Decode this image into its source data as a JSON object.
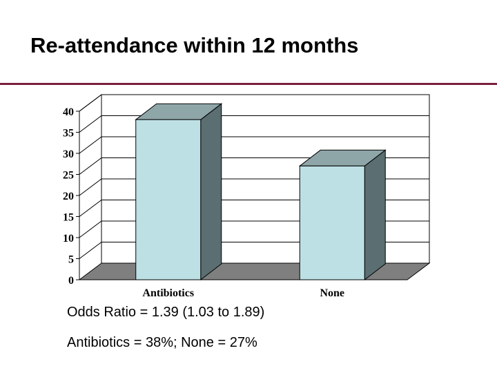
{
  "slide": {
    "title": "Re-attendance within 12 months",
    "rule_color": "#7a1f3d",
    "notes": [
      "Odds Ratio = 1.39 (1.03 to 1.89)",
      "Antibiotics = 38%; None = 27%"
    ]
  },
  "chart_data": {
    "type": "bar",
    "title": "",
    "xlabel": "",
    "ylabel": "",
    "categories": [
      "Antibiotics",
      "None"
    ],
    "values": [
      38,
      27
    ],
    "ylim": [
      0,
      40
    ],
    "yticks": [
      0,
      5,
      10,
      15,
      20,
      25,
      30,
      35,
      40
    ],
    "grid": true,
    "legend": "none",
    "colors": {
      "bar_front": "#bde0e4",
      "bar_top": "#8fa6a9",
      "bar_side": "#5b6e71",
      "floor": "#7f7f7f",
      "gridline": "#000000"
    }
  }
}
